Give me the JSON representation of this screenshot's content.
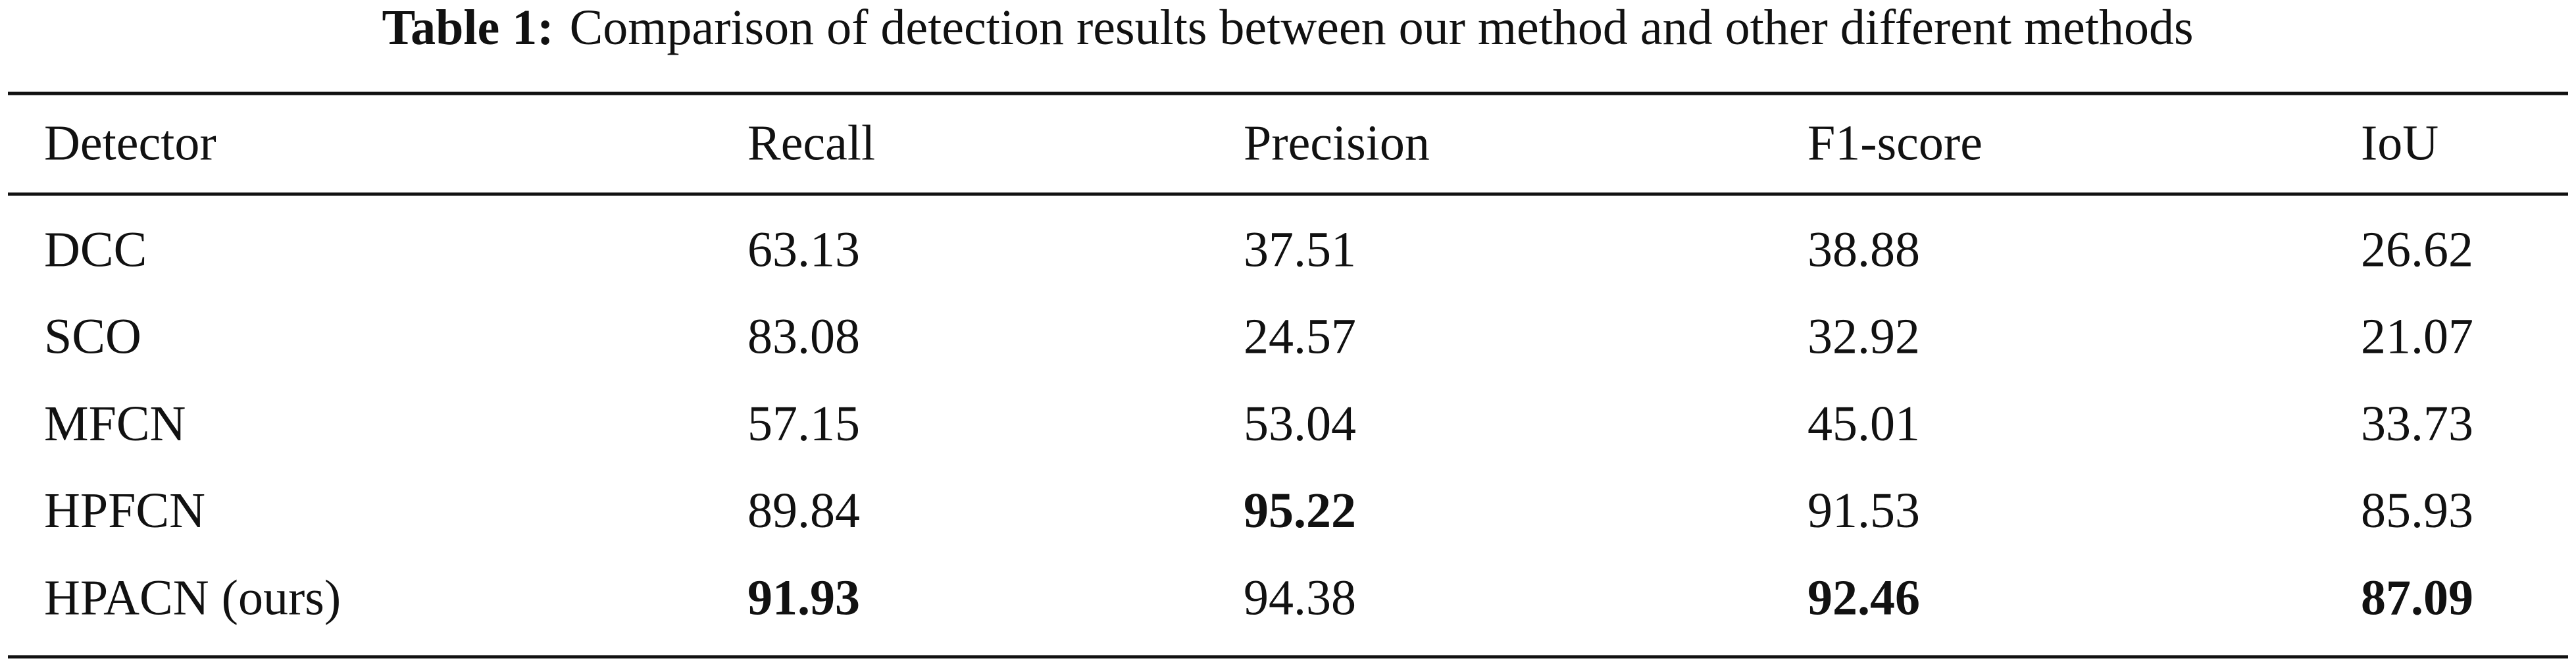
{
  "caption": {
    "label": "Table 1:",
    "text": "Comparison of detection results between our method and other different methods"
  },
  "table": {
    "header": [
      "Detector",
      "Recall",
      "Precision",
      "F1-score",
      "IoU"
    ],
    "rows": [
      [
        "DCC",
        "63.13",
        "37.51",
        "38.88",
        "26.62"
      ],
      [
        "SCO",
        "83.08",
        "24.57",
        "32.92",
        "21.07"
      ],
      [
        "MFCN",
        "57.15",
        "53.04",
        "45.01",
        "33.73"
      ],
      [
        "HPFCN",
        "89.84",
        "95.22",
        "91.53",
        "85.93"
      ],
      [
        "HPACN (ours)",
        "91.93",
        "94.38",
        "92.46",
        "87.09"
      ]
    ],
    "bold_cells": [
      [
        4,
        1
      ],
      [
        3,
        2
      ],
      [
        4,
        3
      ],
      [
        4,
        4
      ]
    ]
  }
}
